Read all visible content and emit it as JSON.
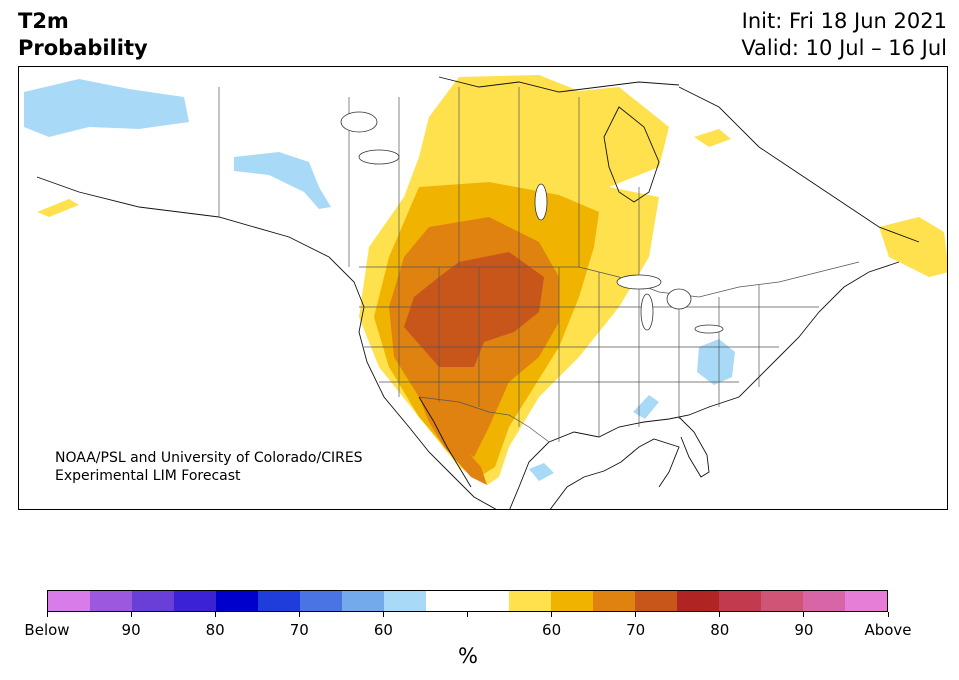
{
  "header": {
    "variable": "T2m",
    "product": "Probability",
    "init": "Init: Fri 18 Jun 2021",
    "valid": "Valid: 10 Jul – 16 Jul"
  },
  "credit": {
    "line1": "NOAA/PSL and University of Colorado/CIRES",
    "line2": "Experimental LIM Forecast"
  },
  "colorbar": {
    "unit": "%",
    "labels": [
      "Below",
      "90",
      "80",
      "70",
      "60",
      "",
      "60",
      "70",
      "80",
      "90",
      "Above"
    ],
    "colors": [
      "#d77ce8",
      "#9b59e0",
      "#6a3fd8",
      "#3b22d4",
      "#0000cd",
      "#1f3ddb",
      "#4a73e3",
      "#72aaec",
      "#a8daf8",
      "#ffffff",
      "#ffffff",
      "#ffe14d",
      "#f0b400",
      "#df8210",
      "#c8561a",
      "#b02424",
      "#c23a4e",
      "#cf5577",
      "#d866a6",
      "#e67ed8"
    ]
  },
  "map": {
    "region": "North America",
    "colors": {
      "above_55": "#ffe14d",
      "above_60": "#f0b400",
      "above_65": "#df8210",
      "above_70": "#c8561a",
      "below_55": "#a8daf8"
    }
  }
}
